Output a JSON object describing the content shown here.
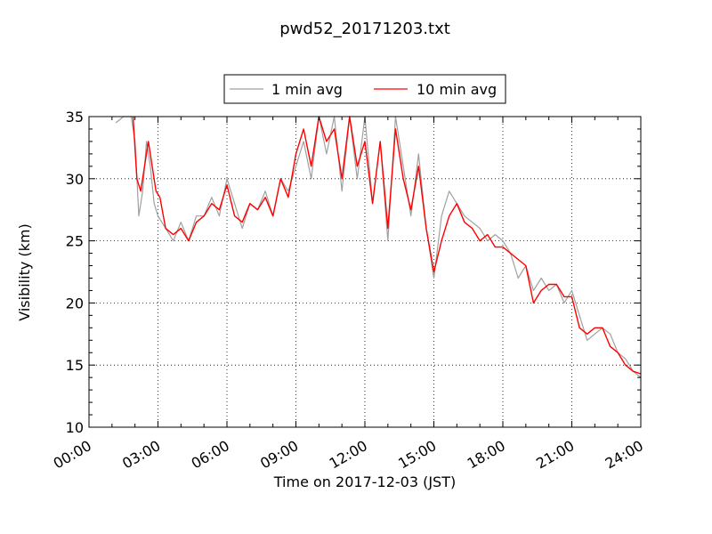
{
  "chart_data": {
    "type": "line",
    "title": "pwd52_20171203.txt",
    "xlabel": "Time on 2017-12-03 (JST)",
    "ylabel": "Visibility (km)",
    "xlim": [
      "00:00",
      "24:00"
    ],
    "ylim": [
      10,
      35
    ],
    "x_ticks": [
      "00:00",
      "03:00",
      "06:00",
      "09:00",
      "12:00",
      "15:00",
      "18:00",
      "21:00",
      "24:00"
    ],
    "y_ticks": [
      10,
      15,
      20,
      25,
      30,
      35
    ],
    "grid": true,
    "legend_position": "top-center",
    "series": [
      {
        "name": "1 min avg",
        "color": "#a0a0a0",
        "x": [
          "01:10",
          "01:30",
          "01:50",
          "02:00",
          "02:10",
          "02:20",
          "02:30",
          "02:40",
          "02:50",
          "03:00",
          "03:20",
          "03:40",
          "04:00",
          "04:20",
          "04:40",
          "05:00",
          "05:20",
          "05:40",
          "06:00",
          "06:20",
          "06:40",
          "07:00",
          "07:20",
          "07:40",
          "08:00",
          "08:20",
          "08:40",
          "09:00",
          "09:20",
          "09:40",
          "10:00",
          "10:20",
          "10:40",
          "11:00",
          "11:20",
          "11:40",
          "12:00",
          "12:20",
          "12:40",
          "13:00",
          "13:20",
          "13:40",
          "14:00",
          "14:20",
          "14:40",
          "15:00",
          "15:20",
          "15:40",
          "16:00",
          "16:20",
          "16:40",
          "17:00",
          "17:20",
          "17:40",
          "18:00",
          "18:20",
          "18:40",
          "19:00",
          "19:20",
          "19:40",
          "20:00",
          "20:20",
          "20:40",
          "21:00",
          "21:20",
          "21:40",
          "22:00",
          "22:20",
          "22:40",
          "23:00",
          "23:20",
          "23:40",
          "24:00"
        ],
        "values": [
          34.5,
          35,
          35,
          33,
          27,
          29,
          33,
          31,
          28,
          27,
          26,
          25,
          26.5,
          25,
          27,
          27,
          28.5,
          27,
          30,
          28,
          26,
          28,
          27.5,
          29,
          27,
          30,
          29,
          31,
          33,
          30,
          35,
          32,
          35,
          29,
          35,
          30,
          35,
          28,
          33,
          25,
          35,
          31,
          27,
          32,
          26,
          22,
          27,
          29,
          28,
          27,
          26.5,
          26,
          25,
          25.5,
          25,
          24,
          22,
          23,
          21,
          22,
          21,
          21.5,
          20,
          21,
          19,
          17,
          17.5,
          18,
          17.5,
          16,
          15.5,
          14.5,
          14
        ]
      },
      {
        "name": "10 min avg",
        "color": "#ff0000",
        "x": [
          "01:55",
          "02:05",
          "02:15",
          "02:25",
          "02:35",
          "02:45",
          "02:55",
          "03:05",
          "03:20",
          "03:40",
          "04:00",
          "04:20",
          "04:40",
          "05:00",
          "05:20",
          "05:40",
          "06:00",
          "06:20",
          "06:40",
          "07:00",
          "07:20",
          "07:40",
          "08:00",
          "08:20",
          "08:40",
          "09:00",
          "09:20",
          "09:40",
          "10:00",
          "10:20",
          "10:40",
          "11:00",
          "11:20",
          "11:40",
          "12:00",
          "12:20",
          "12:40",
          "13:00",
          "13:20",
          "13:40",
          "14:00",
          "14:20",
          "14:40",
          "15:00",
          "15:20",
          "15:40",
          "16:00",
          "16:20",
          "16:40",
          "17:00",
          "17:20",
          "17:40",
          "18:00",
          "18:20",
          "18:40",
          "19:00",
          "19:20",
          "19:40",
          "20:00",
          "20:20",
          "20:40",
          "21:00",
          "21:20",
          "21:40",
          "22:00",
          "22:20",
          "22:40",
          "23:00",
          "23:20",
          "23:40",
          "24:00"
        ],
        "values": [
          35,
          30,
          29,
          31,
          33,
          31,
          29,
          28.5,
          26,
          25.5,
          26,
          25,
          26.5,
          27,
          28,
          27.5,
          29.5,
          27,
          26.5,
          28,
          27.5,
          28.5,
          27,
          30,
          28.5,
          32,
          34,
          31,
          35,
          33,
          34,
          30,
          35,
          31,
          33,
          28,
          33,
          26,
          34,
          30,
          27.5,
          31,
          26,
          22.5,
          25,
          27,
          28,
          26.5,
          26,
          25,
          25.5,
          24.5,
          24.5,
          24,
          23.5,
          23,
          20,
          21,
          21.5,
          21.5,
          20.5,
          20.5,
          18,
          17.5,
          18,
          18,
          16.5,
          16,
          15,
          14.5,
          14.3
        ]
      }
    ]
  }
}
